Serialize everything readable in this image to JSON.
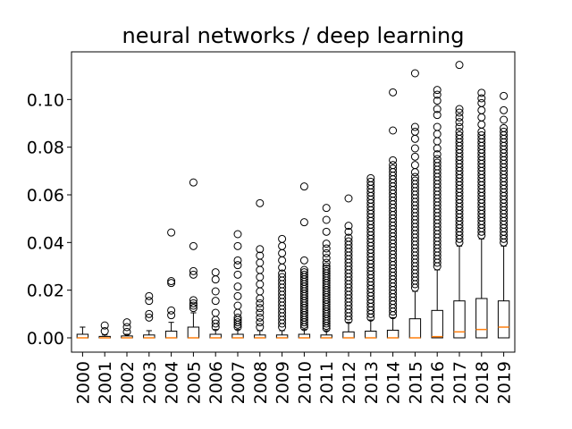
{
  "chart_data": {
    "type": "box",
    "title": "neural networks / deep learning",
    "xlabel": "",
    "ylabel": "",
    "ylim": [
      -0.006,
      0.12
    ],
    "yticks": [
      0.0,
      0.02,
      0.04,
      0.06,
      0.08,
      0.1
    ],
    "ytick_labels": [
      "0.00",
      "0.02",
      "0.04",
      "0.06",
      "0.08",
      "0.10"
    ],
    "categories": [
      "2000",
      "2001",
      "2002",
      "2003",
      "2004",
      "2005",
      "2006",
      "2007",
      "2008",
      "2009",
      "2010",
      "2011",
      "2012",
      "2013",
      "2014",
      "2015",
      "2016",
      "2017",
      "2018",
      "2019"
    ],
    "colors": {
      "box": "#000000",
      "median": "#ff7f0e",
      "flier": "#000000"
    },
    "boxes": [
      {
        "year": "2000",
        "q1": 0,
        "median": 0,
        "q3": 0.0015,
        "whisker_low": 0,
        "whisker_high": 0.0045,
        "fliers": []
      },
      {
        "year": "2001",
        "q1": 0,
        "median": 0,
        "q3": 0.0006,
        "whisker_low": 0,
        "whisker_high": 0.0012,
        "fliers": [
          0.0028,
          0.0052
        ]
      },
      {
        "year": "2002",
        "q1": 0,
        "median": 0,
        "q3": 0.0008,
        "whisker_low": 0,
        "whisker_high": 0.0015,
        "fliers": [
          0.0025,
          0.0045,
          0.0065
        ]
      },
      {
        "year": "2003",
        "q1": 0,
        "median": 0,
        "q3": 0.0012,
        "whisker_low": 0,
        "whisker_high": 0.003,
        "fliers": [
          0.0085,
          0.01,
          0.0155,
          0.0175
        ]
      },
      {
        "year": "2004",
        "q1": 0,
        "median": 0,
        "q3": 0.0028,
        "whisker_low": 0,
        "whisker_high": 0.0065,
        "fliers": [
          0.0095,
          0.0115,
          0.023,
          0.0238,
          0.0442
        ]
      },
      {
        "year": "2005",
        "q1": 0,
        "median": 0,
        "q3": 0.0045,
        "whisker_low": 0,
        "whisker_high": 0.0105,
        "fliers": [
          0.0125,
          0.0135,
          0.0145,
          0.0158,
          0.0265,
          0.028,
          0.0385,
          0.0652
        ]
      },
      {
        "year": "2006",
        "q1": 0,
        "median": 0,
        "q3": 0.0015,
        "whisker_low": 0,
        "whisker_high": 0.0035,
        "fliers": [
          0.0045,
          0.006,
          0.0075,
          0.0105,
          0.0155,
          0.0195,
          0.0245,
          0.0275
        ]
      },
      {
        "year": "2007",
        "q1": 0,
        "median": 0,
        "q3": 0.0015,
        "whisker_low": 0,
        "whisker_high": 0.0035,
        "fliers": [
          0.0045,
          0.0055,
          0.0065,
          0.0075,
          0.0085,
          0.0105,
          0.0135,
          0.0175,
          0.0215,
          0.0265,
          0.0305,
          0.0325,
          0.0385,
          0.0435
        ]
      },
      {
        "year": "2008",
        "q1": 0,
        "median": 0,
        "q3": 0.0012,
        "whisker_low": 0,
        "whisker_high": 0.003,
        "fliers": [
          0.0045,
          0.0065,
          0.0085,
          0.0105,
          0.0125,
          0.0145,
          0.0165,
          0.0195,
          0.0225,
          0.0255,
          0.0285,
          0.0315,
          0.0345,
          0.0372,
          0.0565
        ]
      },
      {
        "year": "2009",
        "q1": 0,
        "median": 0,
        "q3": 0.0012,
        "whisker_low": 0,
        "whisker_high": 0.003,
        "fliers": [
          0.0045,
          0.006,
          0.0075,
          0.009,
          0.0105,
          0.012,
          0.0135,
          0.015,
          0.0165,
          0.018,
          0.0195,
          0.021,
          0.0225,
          0.024,
          0.0255,
          0.027,
          0.0295,
          0.0325,
          0.0355,
          0.0385,
          0.0415
        ]
      },
      {
        "year": "2010",
        "q1": 0,
        "median": 0,
        "q3": 0.0015,
        "whisker_low": 0,
        "whisker_high": 0.0035,
        "fliers": [
          0.0045,
          0.0055,
          0.0065,
          0.0075,
          0.0085,
          0.0095,
          0.0105,
          0.0115,
          0.0125,
          0.0135,
          0.0145,
          0.0155,
          0.0165,
          0.0175,
          0.0185,
          0.0195,
          0.0205,
          0.0215,
          0.0225,
          0.0235,
          0.0245,
          0.0255,
          0.0265,
          0.0275,
          0.0285,
          0.0325,
          0.0485,
          0.0635
        ]
      },
      {
        "year": "2011",
        "q1": 0,
        "median": 0,
        "q3": 0.0012,
        "whisker_low": 0,
        "whisker_high": 0.003,
        "fliers": [
          0.004,
          0.005,
          0.006,
          0.007,
          0.008,
          0.009,
          0.01,
          0.011,
          0.012,
          0.013,
          0.014,
          0.015,
          0.016,
          0.017,
          0.018,
          0.019,
          0.02,
          0.021,
          0.022,
          0.023,
          0.024,
          0.025,
          0.026,
          0.027,
          0.028,
          0.029,
          0.03,
          0.0315,
          0.0335,
          0.0355,
          0.0375,
          0.0395,
          0.0445,
          0.0495,
          0.0545
        ]
      },
      {
        "year": "2012",
        "q1": 0,
        "median": 0,
        "q3": 0.0025,
        "whisker_low": 0,
        "whisker_high": 0.0065,
        "fliers": [
          0.0075,
          0.009,
          0.0105,
          0.012,
          0.0135,
          0.015,
          0.0165,
          0.018,
          0.0195,
          0.021,
          0.0225,
          0.024,
          0.0255,
          0.027,
          0.0285,
          0.03,
          0.0315,
          0.033,
          0.0345,
          0.036,
          0.0375,
          0.039,
          0.0405,
          0.042,
          0.0445,
          0.047,
          0.0585
        ]
      },
      {
        "year": "2013",
        "q1": 0,
        "median": 0,
        "q3": 0.0028,
        "whisker_low": 0,
        "whisker_high": 0.0075,
        "fliers": [
          0.0085,
          0.01,
          0.0115,
          0.013,
          0.0145,
          0.016,
          0.0175,
          0.019,
          0.0205,
          0.022,
          0.0235,
          0.025,
          0.0265,
          0.028,
          0.0295,
          0.031,
          0.0325,
          0.034,
          0.0355,
          0.037,
          0.0385,
          0.04,
          0.0415,
          0.043,
          0.0445,
          0.046,
          0.0475,
          0.049,
          0.0505,
          0.052,
          0.0535,
          0.055,
          0.0565,
          0.058,
          0.0595,
          0.061,
          0.0625,
          0.064,
          0.0655,
          0.067
        ]
      },
      {
        "year": "2014",
        "q1": 0,
        "median": 0,
        "q3": 0.0032,
        "whisker_low": 0,
        "whisker_high": 0.0085,
        "fliers": [
          0.0095,
          0.011,
          0.0125,
          0.014,
          0.0155,
          0.017,
          0.0185,
          0.02,
          0.0215,
          0.023,
          0.0245,
          0.026,
          0.0275,
          0.029,
          0.0305,
          0.032,
          0.0335,
          0.035,
          0.0365,
          0.038,
          0.0395,
          0.041,
          0.0425,
          0.044,
          0.0455,
          0.047,
          0.0485,
          0.05,
          0.0515,
          0.053,
          0.0545,
          0.056,
          0.0575,
          0.059,
          0.0605,
          0.062,
          0.0635,
          0.065,
          0.0665,
          0.068,
          0.0695,
          0.071,
          0.0725,
          0.0745,
          0.087,
          0.103
        ]
      },
      {
        "year": "2015",
        "q1": 0,
        "median": 0,
        "q3": 0.008,
        "whisker_low": 0,
        "whisker_high": 0.0195,
        "fliers": [
          0.021,
          0.0225,
          0.024,
          0.0255,
          0.027,
          0.0285,
          0.03,
          0.0315,
          0.033,
          0.0345,
          0.036,
          0.0375,
          0.039,
          0.0405,
          0.042,
          0.0435,
          0.045,
          0.0465,
          0.048,
          0.0495,
          0.051,
          0.0525,
          0.054,
          0.0555,
          0.057,
          0.0585,
          0.06,
          0.0615,
          0.063,
          0.0645,
          0.066,
          0.0675,
          0.0695,
          0.0725,
          0.076,
          0.0795,
          0.0835,
          0.0865,
          0.0885,
          0.111
        ]
      },
      {
        "year": "2016",
        "q1": 0,
        "median": 0.0005,
        "q3": 0.0115,
        "whisker_low": 0,
        "whisker_high": 0.0285,
        "fliers": [
          0.03,
          0.0315,
          0.033,
          0.0345,
          0.036,
          0.0375,
          0.039,
          0.0405,
          0.042,
          0.0435,
          0.045,
          0.0465,
          0.048,
          0.0495,
          0.051,
          0.0525,
          0.054,
          0.0555,
          0.057,
          0.0585,
          0.06,
          0.0615,
          0.063,
          0.0645,
          0.066,
          0.0675,
          0.069,
          0.0705,
          0.072,
          0.0735,
          0.075,
          0.077,
          0.0795,
          0.0825,
          0.0855,
          0.0885,
          0.0935,
          0.096,
          0.0995,
          0.102,
          0.104
        ]
      },
      {
        "year": "2017",
        "q1": 0,
        "median": 0.0025,
        "q3": 0.0155,
        "whisker_low": 0,
        "whisker_high": 0.0385,
        "fliers": [
          0.04,
          0.0415,
          0.043,
          0.0445,
          0.046,
          0.0475,
          0.049,
          0.0505,
          0.052,
          0.0535,
          0.055,
          0.0565,
          0.058,
          0.0595,
          0.061,
          0.0625,
          0.064,
          0.0655,
          0.067,
          0.0685,
          0.07,
          0.0715,
          0.073,
          0.0745,
          0.076,
          0.0775,
          0.079,
          0.0805,
          0.082,
          0.0835,
          0.085,
          0.0865,
          0.0885,
          0.0905,
          0.0925,
          0.0945,
          0.096,
          0.1145
        ]
      },
      {
        "year": "2018",
        "q1": 0,
        "median": 0.0035,
        "q3": 0.0165,
        "whisker_low": 0,
        "whisker_high": 0.0415,
        "fliers": [
          0.043,
          0.0445,
          0.046,
          0.0475,
          0.049,
          0.0505,
          0.052,
          0.0535,
          0.055,
          0.0565,
          0.058,
          0.0595,
          0.061,
          0.0625,
          0.064,
          0.0655,
          0.067,
          0.0685,
          0.07,
          0.0715,
          0.073,
          0.0745,
          0.076,
          0.0775,
          0.079,
          0.0805,
          0.082,
          0.0835,
          0.085,
          0.0865,
          0.0895,
          0.0925,
          0.0955,
          0.0985,
          0.1005,
          0.1028
        ]
      },
      {
        "year": "2019",
        "q1": 0,
        "median": 0.0045,
        "q3": 0.0155,
        "whisker_low": 0,
        "whisker_high": 0.0385,
        "fliers": [
          0.04,
          0.0415,
          0.043,
          0.0445,
          0.046,
          0.0475,
          0.049,
          0.0505,
          0.052,
          0.0535,
          0.055,
          0.0565,
          0.058,
          0.0595,
          0.061,
          0.0625,
          0.064,
          0.0655,
          0.067,
          0.0685,
          0.07,
          0.0715,
          0.073,
          0.0745,
          0.076,
          0.0775,
          0.079,
          0.0805,
          0.082,
          0.0835,
          0.085,
          0.0865,
          0.088,
          0.0915,
          0.0955,
          0.1015
        ]
      }
    ]
  }
}
